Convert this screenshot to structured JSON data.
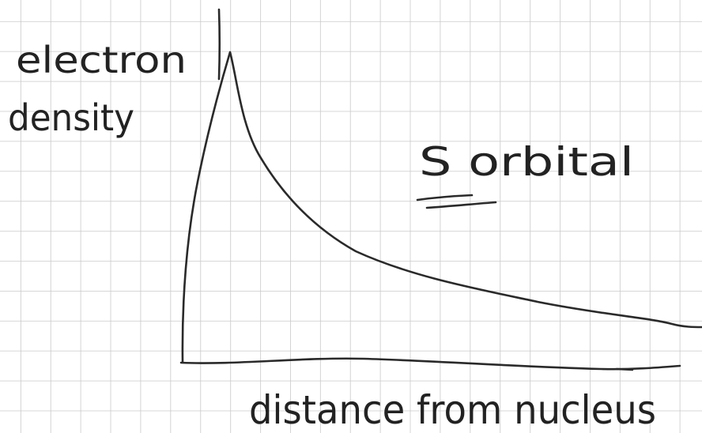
{
  "y_axis_label": [
    "electron",
    "density"
  ],
  "x_axis_label": "distance from nucleus",
  "annotation": "S orbital"
}
